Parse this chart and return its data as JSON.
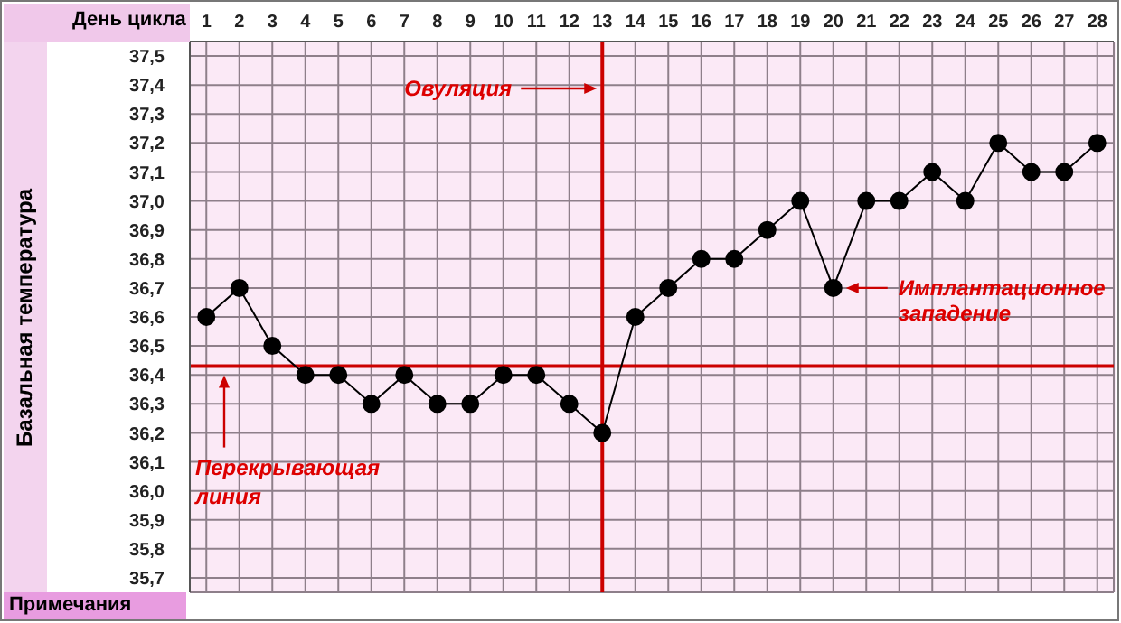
{
  "chart_data": {
    "type": "line",
    "xlabel": "День цикла",
    "ylabel": "Базальная температура",
    "x": [
      1,
      2,
      3,
      4,
      5,
      6,
      7,
      8,
      9,
      10,
      11,
      12,
      13,
      14,
      15,
      16,
      17,
      18,
      19,
      20,
      21,
      22,
      23,
      24,
      25,
      26,
      27,
      28
    ],
    "series": [
      {
        "color": "#000000",
        "values": [
          36.6,
          36.7,
          36.5,
          36.4,
          36.4,
          36.3,
          36.4,
          36.3,
          36.3,
          36.4,
          36.4,
          36.3,
          36.2,
          36.6,
          36.7,
          36.8,
          36.8,
          36.9,
          37.0,
          36.7,
          37.0,
          37.0,
          37.1,
          37.0,
          37.2,
          37.1,
          37.1,
          37.2
        ]
      }
    ],
    "xlim": [
      0.5,
      28.5
    ],
    "xticks": [
      1,
      2,
      3,
      4,
      5,
      6,
      7,
      8,
      9,
      10,
      11,
      12,
      13,
      14,
      15,
      16,
      17,
      18,
      19,
      20,
      21,
      22,
      23,
      24,
      25,
      26,
      27,
      28
    ],
    "ylim": [
      35.65,
      37.55
    ],
    "yticks": [
      {
        "value": 35.7,
        "label": "35,7"
      },
      {
        "value": 35.8,
        "label": "35,8"
      },
      {
        "value": 35.9,
        "label": "35,9"
      },
      {
        "value": 36.0,
        "label": "36,0"
      },
      {
        "value": 36.1,
        "label": "36,1"
      },
      {
        "value": 36.2,
        "label": "36,2"
      },
      {
        "value": 36.3,
        "label": "36,3"
      },
      {
        "value": 36.4,
        "label": "36,4"
      },
      {
        "value": 36.5,
        "label": "36,5"
      },
      {
        "value": 36.6,
        "label": "36,6"
      },
      {
        "value": 36.7,
        "label": "36,7"
      },
      {
        "value": 36.8,
        "label": "36,8"
      },
      {
        "value": 36.9,
        "label": "36,9"
      },
      {
        "value": 37.0,
        "label": "37,0"
      },
      {
        "value": 37.1,
        "label": "37,1"
      },
      {
        "value": 37.2,
        "label": "37,2"
      },
      {
        "value": 37.3,
        "label": "37,3"
      },
      {
        "value": 37.4,
        "label": "37,4"
      },
      {
        "value": 37.5,
        "label": "37,5"
      }
    ],
    "ref_lines": [
      {
        "axis": "x",
        "value": 13,
        "label": "Овуляция",
        "color": "#cc0000"
      },
      {
        "axis": "y",
        "value": 36.43,
        "label": "Перекрывающая линия",
        "color": "#cc0000"
      }
    ],
    "annotations": [
      {
        "text": "Имплантационное западение",
        "x": 20,
        "y": 36.7
      },
      "Примечания"
    ],
    "grid": true,
    "marker": "circle",
    "line_style": "solid"
  }
}
